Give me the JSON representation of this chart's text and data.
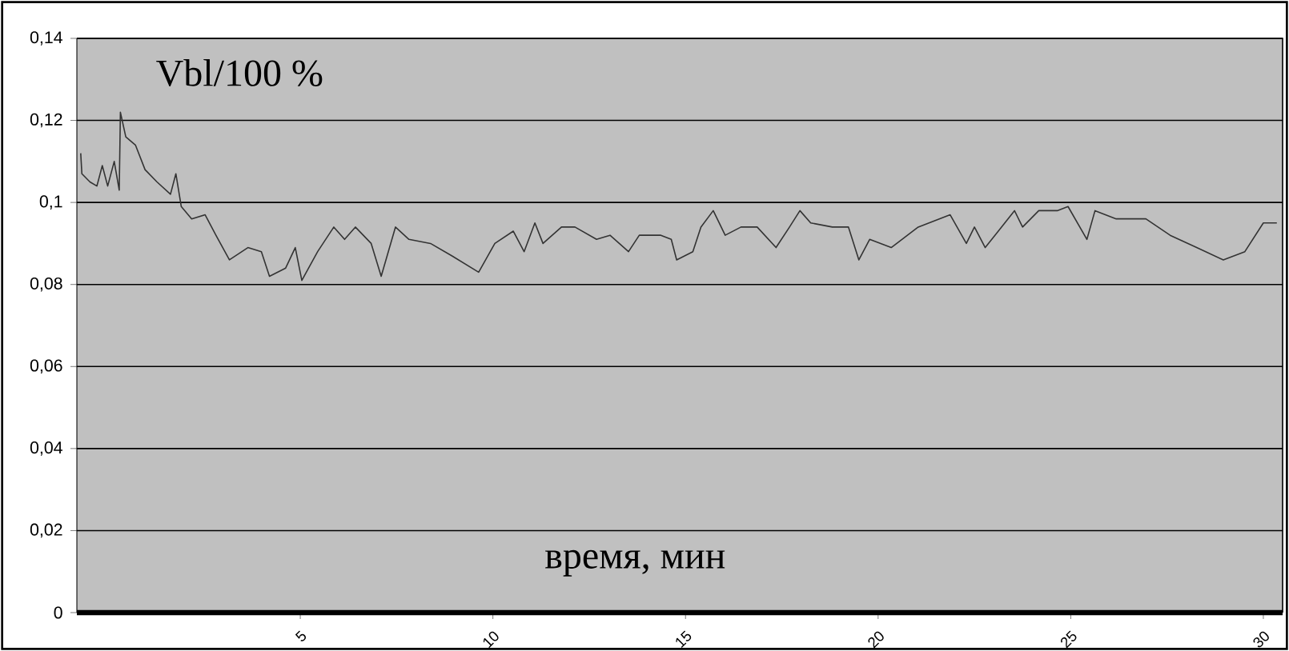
{
  "chart_data": {
    "type": "line",
    "annotations": [
      "Vbl/100 %",
      "время, мин"
    ],
    "x": [
      -0.7,
      -0.67,
      -0.46,
      -0.28,
      -0.14,
      0,
      0.17,
      0.3,
      0.33,
      0.47,
      0.72,
      0.97,
      1.28,
      1.63,
      1.77,
      1.91,
      2.18,
      2.53,
      2.81,
      3.16,
      3.64,
      3.99,
      4.2,
      4.62,
      4.87,
      5.04,
      5.45,
      5.87,
      6.15,
      6.43,
      6.84,
      7.1,
      7.47,
      7.82,
      8.38,
      8.93,
      9.63,
      10.05,
      10.53,
      10.81,
      11.09,
      11.3,
      11.78,
      12.13,
      12.69,
      13.04,
      13.52,
      13.8,
      14.36,
      14.63,
      14.77,
      15.19,
      15.4,
      15.72,
      16.03,
      16.44,
      16.86,
      17.35,
      17.7,
      17.97,
      18.25,
      18.81,
      19.23,
      19.5,
      19.78,
      20.34,
      21.04,
      21.87,
      22.29,
      22.5,
      22.78,
      23.12,
      23.54,
      23.75,
      24.17,
      24.65,
      24.93,
      25.42,
      25.63,
      26.18,
      26.95,
      27.58,
      28.27,
      28.96,
      29.52,
      30.0,
      30.35
    ],
    "series": [
      {
        "color": "#333333",
        "values": [
          0.112,
          0.107,
          0.105,
          0.104,
          0.109,
          0.104,
          0.11,
          0.103,
          0.122,
          0.116,
          0.114,
          0.108,
          0.105,
          0.102,
          0.107,
          0.099,
          0.096,
          0.097,
          0.092,
          0.086,
          0.089,
          0.088,
          0.082,
          0.084,
          0.089,
          0.081,
          0.088,
          0.094,
          0.091,
          0.094,
          0.09,
          0.082,
          0.094,
          0.091,
          0.09,
          0.087,
          0.083,
          0.09,
          0.093,
          0.088,
          0.095,
          0.09,
          0.094,
          0.094,
          0.091,
          0.092,
          0.088,
          0.092,
          0.092,
          0.091,
          0.086,
          0.088,
          0.094,
          0.098,
          0.092,
          0.094,
          0.094,
          0.089,
          0.094,
          0.098,
          0.095,
          0.094,
          0.094,
          0.086,
          0.091,
          0.089,
          0.094,
          0.097,
          0.09,
          0.094,
          0.089,
          0.093,
          0.098,
          0.094,
          0.098,
          0.098,
          0.099,
          0.091,
          0.098,
          0.096,
          0.096,
          0.092,
          0.089,
          0.086,
          0.088,
          0.095,
          0.095
        ]
      }
    ],
    "xlim": [
      -0.8,
      30.5
    ],
    "xticks": [
      5,
      10,
      15,
      20,
      25,
      30
    ],
    "ylim": [
      0,
      0.14
    ],
    "yticks": [
      {
        "value": 0,
        "label": "0"
      },
      {
        "value": 0.02,
        "label": "0,02"
      },
      {
        "value": 0.04,
        "label": "0,04"
      },
      {
        "value": 0.06,
        "label": "0,06"
      },
      {
        "value": 0.08,
        "label": "0,08"
      },
      {
        "value": 0.1,
        "label": "0,1"
      },
      {
        "value": 0.12,
        "label": "0,12"
      },
      {
        "value": 0.14,
        "label": "0,14"
      }
    ],
    "grid": "y",
    "marker": "none",
    "line_style": "solid"
  }
}
